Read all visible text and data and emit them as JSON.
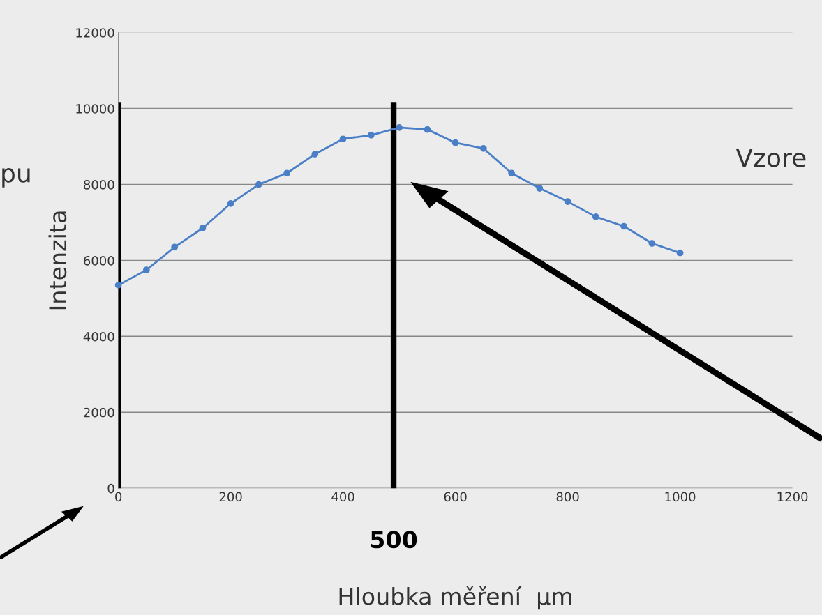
{
  "chart_data": {
    "type": "line",
    "xlabel": "Hloubka měření  µm",
    "ylabel": "Intenzita",
    "x": [
      0,
      50,
      100,
      150,
      200,
      250,
      300,
      350,
      400,
      450,
      500,
      550,
      600,
      650,
      700,
      750,
      800,
      850,
      900,
      950,
      1000
    ],
    "series": [
      {
        "color": "#4a7fc8",
        "values": [
          5350,
          5750,
          6350,
          6850,
          7500,
          8000,
          8300,
          8800,
          9200,
          9300,
          9500,
          9450,
          9100,
          8950,
          8300,
          7900,
          7550,
          7150,
          6900,
          6450,
          6200
        ]
      }
    ],
    "marker": "circle",
    "line_style": "solid",
    "xlim": [
      0,
      1200
    ],
    "xticks": [
      0,
      200,
      400,
      600,
      800,
      1000,
      1200
    ],
    "ylim": [
      0,
      12000
    ],
    "yticks": [
      0,
      2000,
      4000,
      6000,
      8000,
      10000,
      12000
    ],
    "grid": "y",
    "ref_lines": [
      {
        "axis": "x",
        "value": 0,
        "color": "#000000"
      },
      {
        "axis": "x",
        "value": 490,
        "color": "#000000"
      }
    ],
    "annotations": [
      {
        "text": "500",
        "x": 490,
        "y": 0
      },
      "pu",
      "Vzore"
    ]
  }
}
